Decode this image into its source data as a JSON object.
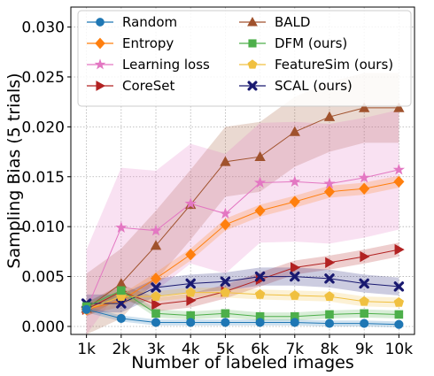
{
  "chart_data": {
    "type": "line",
    "title": "",
    "xlabel": "Number of labeled images",
    "ylabel": "Sampling Bias (5 trials)",
    "categories": [
      "1k",
      "2k",
      "3k",
      "4k",
      "5k",
      "6k",
      "7k",
      "8k",
      "9k",
      "10k"
    ],
    "x": [
      1,
      2,
      3,
      4,
      5,
      6,
      7,
      8,
      9,
      10
    ],
    "xlim": [
      0.55,
      10.45
    ],
    "ylim": [
      -0.0008,
      0.032
    ],
    "yticks": [
      0.0,
      0.005,
      0.01,
      0.015,
      0.02,
      0.025,
      0.03
    ],
    "ytick_labels": [
      "0.000",
      "0.005",
      "0.010",
      "0.015",
      "0.020",
      "0.025",
      "0.030"
    ],
    "grid": true,
    "grid_style": "dotted",
    "legend": {
      "position": "top",
      "columns": 2
    },
    "series": [
      {
        "name": "Random",
        "color": "#1f77b4",
        "marker": "circle",
        "band": 0.0003,
        "values": [
          0.0017,
          0.0008,
          0.0004,
          0.0004,
          0.0004,
          0.0004,
          0.0004,
          0.0003,
          0.0003,
          0.0002
        ]
      },
      {
        "name": "Entropy",
        "color": "#ff7f0e",
        "marker": "diamond",
        "band": 0.0006,
        "values": [
          0.0017,
          0.0026,
          0.0048,
          0.0072,
          0.0102,
          0.0116,
          0.0125,
          0.0135,
          0.0138,
          0.0145
        ]
      },
      {
        "name": "Learning loss",
        "color": "#e377c2",
        "marker": "star",
        "band": 0.006,
        "values": [
          0.0017,
          0.0099,
          0.0096,
          0.0123,
          0.0113,
          0.0144,
          0.0145,
          0.0143,
          0.0149,
          0.0157
        ]
      },
      {
        "name": "CoreSet",
        "color": "#b22222",
        "marker": "triangle-right",
        "band": 0.0007,
        "values": [
          0.0017,
          0.0035,
          0.0022,
          0.0026,
          0.0035,
          0.0047,
          0.0059,
          0.0064,
          0.007,
          0.0077
        ]
      },
      {
        "name": "BALD",
        "color": "#a0522d",
        "marker": "triangle-up",
        "band": 0.0035,
        "values": [
          0.0018,
          0.0043,
          0.0081,
          0.0122,
          0.0165,
          0.017,
          0.0195,
          0.021,
          0.0219,
          0.0219
        ]
      },
      {
        "name": "DFM (ours)",
        "color": "#4daf4a",
        "marker": "square",
        "band": 0.0004,
        "values": [
          0.002,
          0.0036,
          0.0013,
          0.0011,
          0.0013,
          0.001,
          0.001,
          0.0012,
          0.0013,
          0.0012
        ]
      },
      {
        "name": "FeatureSim (ours)",
        "color": "#f0c040",
        "marker": "pentagon",
        "band": 0.0005,
        "values": [
          0.0017,
          0.003,
          0.003,
          0.0034,
          0.0034,
          0.0032,
          0.0031,
          0.003,
          0.0025,
          0.0024
        ]
      },
      {
        "name": "SCAL (ours)",
        "color": "#191970",
        "marker": "x",
        "band": 0.0009,
        "values": [
          0.0023,
          0.0023,
          0.0039,
          0.0043,
          0.0045,
          0.005,
          0.005,
          0.0048,
          0.0043,
          0.004
        ]
      }
    ]
  }
}
